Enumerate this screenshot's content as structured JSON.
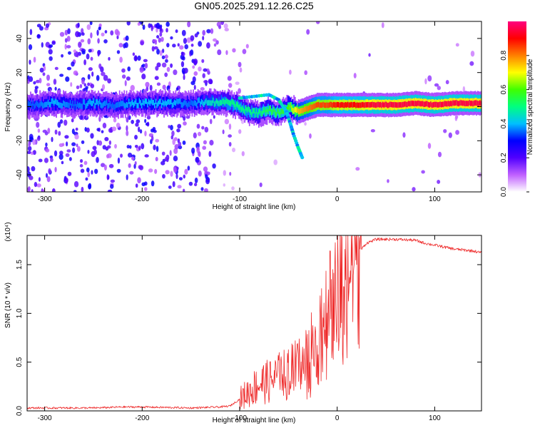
{
  "title": "GN05.2025.291.12.26.C25",
  "chart_data": [
    {
      "type": "heatmap",
      "name": "spectrogram",
      "xlabel": "Height of straight line (km)",
      "ylabel": "Frequency (Hz)",
      "xlim": [
        -318,
        148
      ],
      "ylim": [
        -50,
        50
      ],
      "xticks": [
        -300,
        -200,
        -100,
        0,
        100
      ],
      "yticks": [
        -40,
        -20,
        0,
        20,
        40
      ],
      "colorbar": {
        "label": "Normalized spectral amplitude",
        "range": [
          0,
          1
        ],
        "ticks": [
          "0.0",
          "0.2",
          "0.4",
          "0.6",
          "0.8"
        ],
        "tick_values": [
          0.0,
          0.2,
          0.4,
          0.6,
          0.8
        ],
        "colors": [
          "#ffffff",
          "#c060ff",
          "#5000ff",
          "#0000ff",
          "#00c0ff",
          "#00ff80",
          "#40ff00",
          "#ffff00",
          "#ff8000",
          "#ff0000",
          "#ff0080"
        ]
      },
      "ridge": [
        {
          "x": -310,
          "y": 1,
          "a": 0.35
        },
        {
          "x": -290,
          "y": 2,
          "a": 0.4
        },
        {
          "x": -270,
          "y": 1,
          "a": 0.35
        },
        {
          "x": -250,
          "y": 2,
          "a": 0.4
        },
        {
          "x": -230,
          "y": 1,
          "a": 0.35
        },
        {
          "x": -210,
          "y": 2,
          "a": 0.4
        },
        {
          "x": -190,
          "y": 2,
          "a": 0.4
        },
        {
          "x": -170,
          "y": 2,
          "a": 0.4
        },
        {
          "x": -150,
          "y": 2,
          "a": 0.35
        },
        {
          "x": -130,
          "y": 3,
          "a": 0.45
        },
        {
          "x": -110,
          "y": 2,
          "a": 0.5
        },
        {
          "x": -100,
          "y": 0,
          "a": 0.5
        },
        {
          "x": -90,
          "y": -3,
          "a": 0.5
        },
        {
          "x": -80,
          "y": -4,
          "a": 0.5
        },
        {
          "x": -70,
          "y": -2,
          "a": 0.55
        },
        {
          "x": -60,
          "y": -4,
          "a": 0.55
        },
        {
          "x": -50,
          "y": 0,
          "a": 0.6
        },
        {
          "x": -40,
          "y": -3,
          "a": 0.75
        },
        {
          "x": -30,
          "y": -1,
          "a": 0.8
        },
        {
          "x": -20,
          "y": 1,
          "a": 0.85
        },
        {
          "x": -10,
          "y": 1,
          "a": 0.85
        },
        {
          "x": 0,
          "y": 1,
          "a": 0.9
        },
        {
          "x": 20,
          "y": 1,
          "a": 0.9
        },
        {
          "x": 40,
          "y": 1,
          "a": 0.95
        },
        {
          "x": 60,
          "y": 1,
          "a": 0.95
        },
        {
          "x": 80,
          "y": 2,
          "a": 0.95
        },
        {
          "x": 100,
          "y": 1,
          "a": 0.95
        },
        {
          "x": 120,
          "y": 2,
          "a": 0.95
        },
        {
          "x": 140,
          "y": 2,
          "a": 0.95
        }
      ],
      "branch": [
        {
          "x": -100,
          "y": 5
        },
        {
          "x": -85,
          "y": 6
        },
        {
          "x": -70,
          "y": 7
        },
        {
          "x": -60,
          "y": 4
        },
        {
          "x": -52,
          "y": -3
        },
        {
          "x": -48,
          "y": -10
        },
        {
          "x": -45,
          "y": -16
        },
        {
          "x": -40,
          "y": -24
        },
        {
          "x": -35,
          "y": -31
        }
      ]
    },
    {
      "type": "line",
      "name": "snr",
      "xlabel": "Height of straight line (km)",
      "ylabel": "SNR (10 * v/v)",
      "y_multiplier": "(x10⁴)",
      "xlim": [
        -318,
        148
      ],
      "ylim": [
        0,
        1.8
      ],
      "xticks": [
        -300,
        -200,
        -100,
        0,
        100
      ],
      "yticks": [
        "0.0",
        "0.5",
        "1.0",
        "1.5"
      ],
      "ytick_values": [
        0.0,
        0.5,
        1.0,
        1.5
      ],
      "color": "#ee2a2a",
      "series": [
        {
          "name": "SNR",
          "x": [
            -318,
            -300,
            -250,
            -220,
            -200,
            -150,
            -120,
            -110,
            -100,
            -90,
            -80,
            -70,
            -60,
            -50,
            -40,
            -30,
            -20,
            -10,
            0,
            10,
            20,
            30,
            40,
            60,
            80,
            90,
            100,
            110,
            120,
            130,
            140,
            148
          ],
          "y": [
            0.03,
            0.03,
            0.03,
            0.04,
            0.04,
            0.03,
            0.04,
            0.05,
            0.12,
            0.2,
            0.28,
            0.3,
            0.35,
            0.38,
            0.45,
            0.55,
            0.7,
            0.95,
            1.2,
            1.45,
            1.6,
            1.72,
            1.76,
            1.76,
            1.75,
            1.72,
            1.7,
            1.68,
            1.66,
            1.65,
            1.64,
            1.62
          ]
        }
      ]
    }
  ]
}
